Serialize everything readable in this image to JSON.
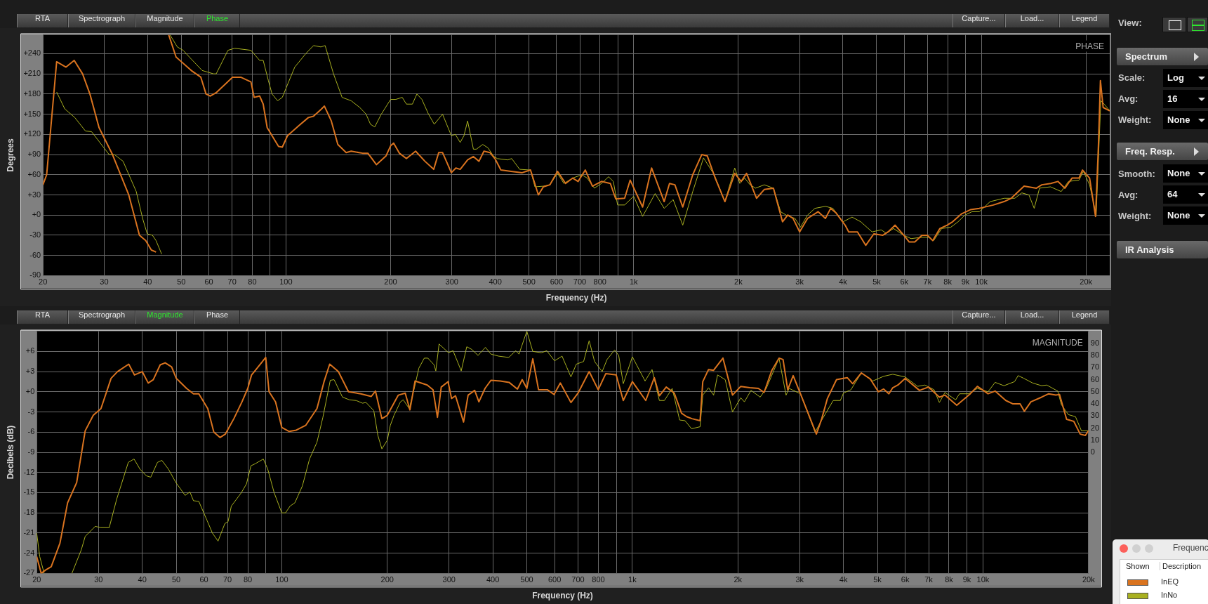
{
  "chart_data": [
    {
      "type": "line",
      "xlabel": "Frequency (Hz)",
      "ylabel": "Degrees",
      "log": "x",
      "grid": true,
      "xlim": [
        20,
        23400
      ],
      "ylim": [
        -90,
        268
      ],
      "xticks": [
        20,
        30,
        40,
        50,
        60,
        70,
        80,
        {
          "value": 90,
          "label": null
        },
        100,
        200,
        300,
        400,
        500,
        600,
        700,
        800,
        {
          "value": 900,
          "label": null
        },
        {
          "value": 1000,
          "label": "1k"
        },
        {
          "value": 2000,
          "label": "2k"
        },
        {
          "value": 3000,
          "label": "3k"
        },
        {
          "value": 4000,
          "label": "4k"
        },
        {
          "value": 5000,
          "label": "5k"
        },
        {
          "value": 6000,
          "label": "6k"
        },
        {
          "value": 7000,
          "label": "7k"
        },
        {
          "value": 8000,
          "label": "8k"
        },
        {
          "value": 9000,
          "label": "9k"
        },
        {
          "value": 10000,
          "label": "10k"
        },
        {
          "value": 20000,
          "label": "20k"
        }
      ],
      "yticks": [
        -90,
        -60,
        -30,
        {
          "value": 0,
          "label": "+0"
        },
        {
          "value": 30,
          "label": "+30"
        },
        {
          "value": 60,
          "label": "+60"
        },
        {
          "value": 90,
          "label": "+90"
        },
        {
          "value": 120,
          "label": "+120"
        },
        {
          "value": 150,
          "label": "+150"
        },
        {
          "value": 180,
          "label": "+180"
        },
        {
          "value": 210,
          "label": "+210"
        },
        {
          "value": 240,
          "label": "+240"
        }
      ],
      "annotations": [
        "PHASE",
        "RTA",
        "Spectrograph",
        "Magnitude",
        "Phase",
        "Capture...",
        "Load...",
        "Legend",
        "View:",
        "Spectrum",
        "Scale:",
        "Log",
        "Avg:",
        "16",
        "Weight:",
        "None",
        "Freq. Resp.",
        "Smooth:",
        "None",
        "Avg:",
        "64",
        "Weight:",
        "None",
        "IR Analysis"
      ],
      "series": [
        {
          "color": "#d9731f",
          "x": [
            20,
            20.5,
            21.9,
            23.3,
            24.6,
            26,
            27.3,
            29,
            31.7,
            35.3,
            37.9,
            39.5,
            41,
            42.3,
            44,
            46,
            48.3,
            53.4,
            56.9,
            58.9,
            60.6,
            63,
            70.2,
            74.1,
            79.3,
            81,
            84,
            86,
            88.3,
            95.2,
            97.6,
            101,
            109,
            116,
            120,
            126,
            129,
            135,
            141,
            149,
            154,
            166,
            172,
            179,
            182,
            194,
            200,
            204,
            212,
            222,
            236,
            251,
            266,
            275,
            282,
            299,
            308,
            317,
            333,
            346,
            359,
            371,
            386,
            400,
            415,
            444,
            478,
            505,
            532,
            550,
            574,
            604,
            637,
            668,
            692,
            726,
            761,
            808,
            857,
            888,
            942,
            977,
            1061,
            1126,
            1224,
            1268,
            1314,
            1384,
            1479,
            1570,
            1628,
            1716,
            1830,
            1953,
            2038,
            2112,
            2257,
            2375,
            2524,
            2680,
            2774,
            2874,
            3001,
            3163,
            3394,
            3560,
            3687,
            3822,
            4057,
            4155,
            4403,
            4650,
            4907,
            5208,
            5393,
            5649,
            5982,
            6203,
            6436,
            6748,
            6993,
            7250,
            7599,
            7969,
            8264,
            8780,
            9302,
            9864,
            10830,
            11620,
            12190,
            13270,
            14400,
            14920,
            15830,
            16600,
            17390,
            18230,
            19090,
            19540,
            20480,
            21300,
            21700,
            22000,
            22400,
            23400
          ],
          "values": [
            45,
            60,
            228,
            220,
            230,
            210,
            180,
            130,
            90,
            30,
            -30,
            -38,
            -52,
            -55,
            null,
            268,
            235,
            215,
            205,
            180,
            177,
            182,
            205,
            205,
            198,
            175,
            177,
            165,
            130,
            102,
            101,
            118,
            133,
            145,
            147,
            157,
            162,
            140,
            105,
            93,
            95,
            92,
            92,
            80,
            75,
            88,
            103,
            107,
            92,
            84,
            95,
            80,
            68,
            93,
            93,
            63,
            70,
            68,
            82,
            87,
            80,
            95,
            93,
            83,
            67,
            65,
            63,
            67,
            30,
            42,
            45,
            65,
            47,
            55,
            50,
            67,
            43,
            50,
            47,
            24,
            25,
            52,
            12,
            70,
            20,
            47,
            45,
            12,
            60,
            90,
            88,
            55,
            20,
            62,
            50,
            62,
            25,
            38,
            40,
            -10,
            0,
            -5,
            -25,
            -5,
            5,
            -5,
            10,
            3,
            -15,
            -25,
            -25,
            -45,
            -28,
            -30,
            -25,
            -15,
            -30,
            -40,
            -40,
            -30,
            -30,
            -38,
            -20,
            -15,
            -10,
            2,
            8,
            10,
            15,
            20,
            25,
            43,
            40,
            45,
            47,
            50,
            40,
            55,
            55,
            67,
            55,
            -2,
            100,
            200,
            160,
            155
          ]
        },
        {
          "color": "#a8b020",
          "x": [
            21.9,
            23.1,
            24.7,
            26.5,
            27.6,
            31,
            32.1,
            34,
            37.1,
            38.7,
            39.9,
            41.3,
            42.3,
            43.9,
            45,
            46.4,
            48.7,
            50.6,
            53.4,
            57.4,
            61.9,
            63,
            68.1,
            71.2,
            79.3,
            84,
            86,
            89,
            91.2,
            94.6,
            97.6,
            101.2,
            106,
            114,
            120,
            126,
            129.6,
            137,
            145,
            154,
            163,
            170,
            175,
            180,
            188,
            200,
            207,
            216,
            222,
            231,
            238,
            246,
            257,
            267,
            282,
            299,
            307,
            317,
            325,
            333,
            346,
            353,
            368,
            381,
            395,
            405,
            434,
            446,
            470,
            505,
            520,
            550,
            574,
            604,
            630,
            668,
            709,
            735,
            771,
            808,
            847,
            874,
            899,
            942,
            1000,
            1061,
            1153,
            1224,
            1299,
            1384,
            1479,
            1588,
            1705,
            1830,
            1953,
            2020,
            2087,
            2162,
            2242,
            2375,
            2524,
            2647,
            2744,
            2912,
            3018,
            3163,
            3321,
            3560,
            3740,
            4000,
            4248,
            4500,
            4850,
            5150,
            5330,
            5590,
            5980,
            6280,
            6750,
            7080,
            7290,
            7690,
            8170,
            8570,
            8970,
            9400,
            9870,
            10600,
            11620,
            12480,
            13070,
            13700,
            14190,
            14700,
            15800,
            16970,
            17800,
            19090,
            19650,
            20480,
            21390,
            22060,
            22560,
            23400
          ],
          "values": [
            183,
            158,
            145,
            125,
            124,
            90,
            90,
            80,
            35,
            -5,
            -28,
            -30,
            -38,
            -58,
            null,
            268,
            250,
            245,
            232,
            215,
            210,
            210,
            245,
            248,
            245,
            230,
            230,
            200,
            180,
            170,
            175,
            195,
            220,
            240,
            252,
            250,
            252,
            210,
            175,
            170,
            160,
            150,
            135,
            131,
            150,
            172,
            172,
            175,
            165,
            165,
            180,
            172,
            150,
            135,
            150,
            118,
            120,
            108,
            118,
            140,
            98,
            98,
            105,
            100,
            88,
            84,
            82,
            84,
            68,
            67,
            42,
            43,
            45,
            62,
            47,
            55,
            60,
            55,
            40,
            47,
            57,
            50,
            15,
            15,
            28,
            -2,
            32,
            10,
            23,
            -15,
            35,
            85,
            60,
            20,
            70,
            47,
            55,
            45,
            40,
            45,
            40,
            5,
            0,
            -5,
            -18,
            0,
            10,
            13,
            10,
            -10,
            -3,
            -10,
            -25,
            -22,
            -27,
            -20,
            -30,
            -35,
            -33,
            -33,
            -38,
            -20,
            -18,
            -10,
            0,
            5,
            5,
            20,
            25,
            25,
            33,
            30,
            10,
            40,
            42,
            35,
            50,
            52,
            65,
            45,
            0,
            170,
            165,
            155
          ]
        }
      ]
    },
    {
      "type": "line",
      "xlabel": "Frequency (Hz)",
      "ylabel": "Decibels (dB)",
      "log": "x",
      "grid": true,
      "legend": "bottom right",
      "xlim": [
        20,
        20000
      ],
      "ylim": [
        -27,
        9
      ],
      "y2lim": [
        -100,
        100
      ],
      "xticks": [
        20,
        30,
        40,
        50,
        60,
        70,
        80,
        {
          "value": 90,
          "label": null
        },
        100,
        200,
        300,
        400,
        500,
        600,
        700,
        800,
        {
          "value": 900,
          "label": null
        },
        {
          "value": 1000,
          "label": "1k"
        },
        {
          "value": 2000,
          "label": "2k"
        },
        {
          "value": 3000,
          "label": "3k"
        },
        {
          "value": 4000,
          "label": "4k"
        },
        {
          "value": 5000,
          "label": "5k"
        },
        {
          "value": 6000,
          "label": "6k"
        },
        {
          "value": 7000,
          "label": "7k"
        },
        {
          "value": 8000,
          "label": "8k"
        },
        {
          "value": 9000,
          "label": "9k"
        },
        {
          "value": 10000,
          "label": "10k"
        },
        {
          "value": 20000,
          "label": "20k"
        }
      ],
      "yticks": [
        -27,
        -24,
        -21,
        -18,
        -15,
        -12,
        -9,
        -6,
        -3,
        {
          "value": 0,
          "label": "+0"
        },
        {
          "value": 3,
          "label": "+3"
        },
        {
          "value": 6,
          "label": "+6"
        }
      ],
      "y2ticks": [
        0,
        10,
        20,
        30,
        40,
        50,
        60,
        70,
        80,
        90
      ],
      "annotations": [
        "MAGNITUDE",
        "RTA",
        "Spectrograph",
        "Magnitude",
        "Phase",
        "Capture...",
        "Load...",
        "Legend",
        "Frequenc",
        "Shown",
        "Description"
      ],
      "series": [
        {
          "name": "InEQ",
          "color": "#d9731f",
          "x": [
            20,
            20.6,
            21.2,
            22,
            23.3,
            24.5,
            26,
            27.5,
            29,
            30.5,
            32.6,
            34,
            36.6,
            38,
            40,
            41.6,
            43,
            45,
            46.5,
            48.5,
            50,
            53.5,
            56,
            58,
            61.5,
            64,
            66.7,
            69,
            73,
            77,
            80,
            82,
            85,
            90,
            92,
            96,
            100,
            105,
            110,
            117,
            126,
            132,
            137,
            145,
            155,
            168,
            180,
            185,
            193,
            200,
            215,
            225,
            232,
            240,
            260,
            270,
            278,
            285,
            298,
            305,
            313,
            330,
            340,
            355,
            365,
            380,
            395,
            420,
            445,
            470,
            485,
            500,
            520,
            540,
            572,
            598,
            623,
            668,
            700,
            753,
            799,
            840,
            899,
            942,
            1000,
            1092,
            1155,
            1194,
            1249,
            1317,
            1381,
            1428,
            1479,
            1560,
            1588,
            1649,
            1705,
            1813,
            1930,
            2038,
            2162,
            2287,
            2375,
            2500,
            2620,
            2690,
            2774,
            2875,
            3016,
            3348,
            3469,
            3600,
            3822,
            4100,
            4250,
            4500,
            4770,
            5030,
            5210,
            5390,
            5530,
            5720,
            6000,
            6590,
            6990,
            7510,
            7790,
            8420,
            9200,
            9640,
            10340,
            10830,
            11620,
            12180,
            12760,
            13120,
            13700,
            14700,
            15400,
            16140,
            16530,
            17320,
            18160,
            18940,
            19590,
            20000
          ],
          "values": [
            -24.5,
            -27,
            -26.5,
            -26,
            -22.5,
            -16.5,
            -13.5,
            -5.8,
            -3.5,
            -2.5,
            2,
            3,
            4.1,
            2.5,
            3,
            1.3,
            1.8,
            4,
            4.3,
            3.7,
            2,
            0.5,
            -0.3,
            -0.3,
            -2.5,
            -6,
            -6.8,
            -6.3,
            -4,
            -1.5,
            0.5,
            2.5,
            3.5,
            5.1,
            0,
            -1.5,
            -5.3,
            -5.9,
            -5.7,
            -5,
            -2.5,
            1.5,
            4.1,
            3,
            0,
            -0.3,
            -0.7,
            0.1,
            -4,
            -3.5,
            -0.5,
            -0.2,
            -2.7,
            1.6,
            1,
            0.3,
            -3.8,
            0.7,
            1.5,
            -1,
            -0.6,
            -4.5,
            -0.5,
            0.2,
            -1.5,
            0.5,
            1.7,
            1.6,
            1.4,
            0.4,
            1.8,
            0.5,
            4.9,
            0.3,
            0.3,
            -0.4,
            1.3,
            -1.6,
            -0.2,
            3,
            0.3,
            2.7,
            2.5,
            -1.3,
            1.5,
            -1.3,
            2.1,
            -0.6,
            0.7,
            -0.2,
            -3.2,
            -3.7,
            -4,
            -4.3,
            1.5,
            3.3,
            3.2,
            5,
            -0.5,
            0.8,
            0.6,
            0.5,
            -0.1,
            3.2,
            5,
            4.8,
            0.3,
            2.4,
            -0.3,
            -6.3,
            -4,
            -1,
            1.8,
            2.1,
            1.2,
            2.8,
            1.9,
            0,
            0.4,
            -0.3,
            0.6,
            1,
            2,
            0.2,
            0.7,
            -0.8,
            -0.5,
            -2,
            -0.3,
            0.8,
            -0.3,
            0.1,
            -1.3,
            -1.8,
            -1.8,
            -2.9,
            -1.5,
            -0.8,
            -0.3,
            -0.5,
            -0.4,
            -4.1,
            -4.4,
            -6.3,
            -6.5,
            -5.8
          ]
        },
        {
          "name": "InNo",
          "color": "#a8b020",
          "x": [
            20,
            20.4,
            21,
            23,
            25.2,
            26.8,
            27.5,
            29.4,
            30.4,
            32.2,
            33.8,
            36.5,
            37.9,
            39.4,
            41.1,
            42.3,
            44.2,
            45.5,
            47.5,
            49.9,
            53,
            54.7,
            56,
            58,
            61.3,
            63.4,
            65.8,
            68.8,
            70.3,
            71.8,
            76.7,
            79.3,
            81.7,
            84,
            88.6,
            91.2,
            95.1,
            100,
            102.5,
            105.6,
            109,
            114.5,
            120,
            126,
            131,
            137.5,
            141,
            149,
            156,
            163,
            170,
            174,
            183,
            188,
            193,
            200,
            204,
            209,
            218,
            222,
            231,
            240,
            246,
            255,
            261,
            272,
            275,
            281,
            299,
            308,
            325,
            337,
            348,
            363,
            381,
            395,
            415,
            444,
            465,
            475,
            500,
            520,
            550,
            570,
            600,
            630,
            668,
            692,
            726,
            753,
            780,
            820,
            847,
            890,
            914,
            942,
            1000,
            1087,
            1138,
            1194,
            1234,
            1299,
            1364,
            1413,
            1475,
            1560,
            1588,
            1649,
            1705,
            1750,
            1840,
            1930,
            2038,
            2087,
            2180,
            2315,
            2410,
            2620,
            2744,
            2800,
            3016,
            3320,
            3469,
            3740,
            3920,
            4000,
            4200,
            4500,
            4850,
            5210,
            5530,
            6000,
            6510,
            6830,
            7250,
            7510,
            7790,
            8360,
            8570,
            9100,
            9640,
            10340,
            10830,
            11480,
            12300,
            12600,
            13070,
            13860,
            14700,
            15200,
            16340,
            16730,
            17520,
            18360,
            19090,
            20000
          ],
          "values": [
            -21,
            -24.5,
            -27,
            null,
            -27,
            -23.5,
            -21.5,
            -20,
            -20.2,
            -20.2,
            -16,
            -10.5,
            -10,
            -11.5,
            -12.5,
            -12.7,
            -10.5,
            -10.2,
            -11.5,
            -13.5,
            -15.4,
            -14.9,
            -16.2,
            -16.3,
            -19.2,
            -21,
            -22.2,
            -19.6,
            -19.3,
            -17,
            -15,
            -13.7,
            -11,
            -10.7,
            -10,
            -11.5,
            -15,
            -18,
            -18,
            -17,
            -16.5,
            -14,
            -10,
            -7.5,
            -3.8,
            1.7,
            1.8,
            -0.8,
            -1.2,
            -1.3,
            -1.7,
            -1.6,
            -2.8,
            -6.5,
            -8.5,
            -7.2,
            -5,
            -3.5,
            -1.5,
            -1.2,
            -2.5,
            1,
            3.5,
            5,
            5,
            4,
            3.1,
            7.1,
            5.8,
            6.1,
            3.1,
            6.7,
            6.3,
            5.4,
            6.6,
            5.6,
            5.3,
            5.1,
            6.1,
            5.6,
            9,
            6,
            5.8,
            6.1,
            4.6,
            5.3,
            2.2,
            4.1,
            4.5,
            7.6,
            4.5,
            3,
            4.8,
            6.2,
            5.4,
            1.2,
            5.2,
            1.6,
            3.3,
            -1.3,
            -1.3,
            0.5,
            -4.2,
            -4.3,
            -5.5,
            -5.2,
            -0.5,
            0.6,
            -0.5,
            2.5,
            1.8,
            -3,
            -0.9,
            -1.5,
            0.2,
            -0.8,
            0.5,
            5,
            -0.5,
            0.5,
            -0.3,
            -6,
            -4.2,
            -1.3,
            -1.3,
            -0.2,
            0.3,
            2.8,
            1.6,
            2.3,
            2.6,
            2.2,
            0.8,
            1,
            0.3,
            -1.6,
            -0.1,
            -1.2,
            -0.3,
            -0.3,
            0.5,
            0,
            1.4,
            0.9,
            1.5,
            2.4,
            2,
            1.3,
            0.9,
            1,
            0.1,
            -1.9,
            -3.4,
            -3.7,
            -5.8,
            -5.8
          ]
        }
      ]
    }
  ]
}
